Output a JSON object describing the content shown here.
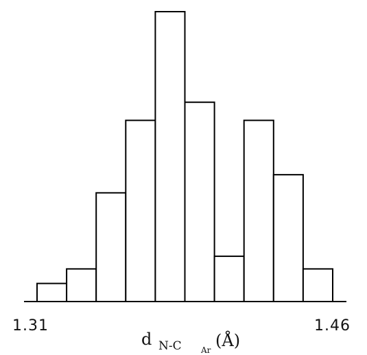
{
  "chart_data": {
    "type": "bar",
    "subtype": "histogram",
    "x_tick_labels": [
      "1.31",
      "1.46"
    ],
    "xlabel": {
      "symbol": "d",
      "subscript": "N-C",
      "subsubscript": "Ar",
      "unit": "(Å)"
    },
    "ylabel": "",
    "grid": false,
    "legend": "none",
    "bins": [
      {
        "count": 1.0
      },
      {
        "count": 1.8
      },
      {
        "count": 6.0
      },
      {
        "count": 10.0
      },
      {
        "count": 16.0
      },
      {
        "count": 11.0
      },
      {
        "count": 2.5
      },
      {
        "count": 10.0
      },
      {
        "count": 7.0
      },
      {
        "count": 1.8
      }
    ],
    "ylim": [
      0,
      16
    ]
  }
}
